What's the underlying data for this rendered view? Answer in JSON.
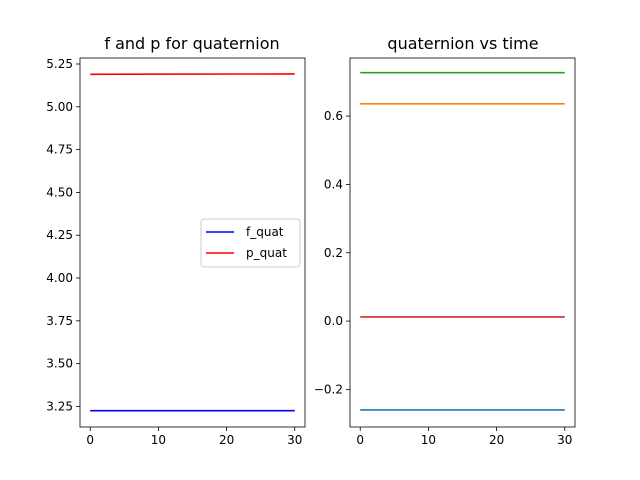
{
  "chart_data": [
    {
      "type": "line",
      "title": "f and p for quaternion",
      "xlabel": "",
      "ylabel": "",
      "xlim": [
        -1.5,
        31.5
      ],
      "ylim": [
        3.13,
        5.285
      ],
      "xticks": [
        0,
        10,
        20,
        30
      ],
      "xtick_labels": [
        "0",
        "10",
        "20",
        "30"
      ],
      "yticks": [
        3.25,
        3.5,
        3.75,
        4.0,
        4.25,
        4.5,
        4.75,
        5.0,
        5.25
      ],
      "ytick_labels": [
        "3.25",
        "3.50",
        "3.75",
        "4.00",
        "4.25",
        "4.50",
        "4.75",
        "5.00",
        "5.25"
      ],
      "grid": false,
      "legend": "center-right",
      "series": [
        {
          "name": "f_quat",
          "color": "#0000ff",
          "x": [
            0,
            30
          ],
          "y": [
            3.225,
            3.225
          ]
        },
        {
          "name": "p_quat",
          "color": "#ff0000",
          "x": [
            0,
            30
          ],
          "y": [
            5.19,
            5.192
          ]
        }
      ]
    },
    {
      "type": "line",
      "title": "quaternion vs time",
      "xlabel": "",
      "ylabel": "",
      "xlim": [
        -1.5,
        31.5
      ],
      "ylim": [
        -0.31,
        0.77
      ],
      "xticks": [
        0,
        10,
        20,
        30
      ],
      "xtick_labels": [
        "0",
        "10",
        "20",
        "30"
      ],
      "yticks": [
        -0.2,
        0.0,
        0.2,
        0.4,
        0.6
      ],
      "ytick_labels": [
        "−0.2",
        "0.0",
        "0.2",
        "0.4",
        "0.6"
      ],
      "grid": false,
      "legend": "none",
      "series": [
        {
          "color": "#1f77b4",
          "x": [
            0,
            30
          ],
          "y": [
            -0.26,
            -0.26
          ]
        },
        {
          "color": "#ff7f0e",
          "x": [
            0,
            30
          ],
          "y": [
            0.636,
            0.636
          ]
        },
        {
          "color": "#2ca02c",
          "x": [
            0,
            30
          ],
          "y": [
            0.727,
            0.727
          ]
        },
        {
          "color": "#d62728",
          "x": [
            0,
            30
          ],
          "y": [
            0.012,
            0.012
          ]
        }
      ]
    }
  ]
}
